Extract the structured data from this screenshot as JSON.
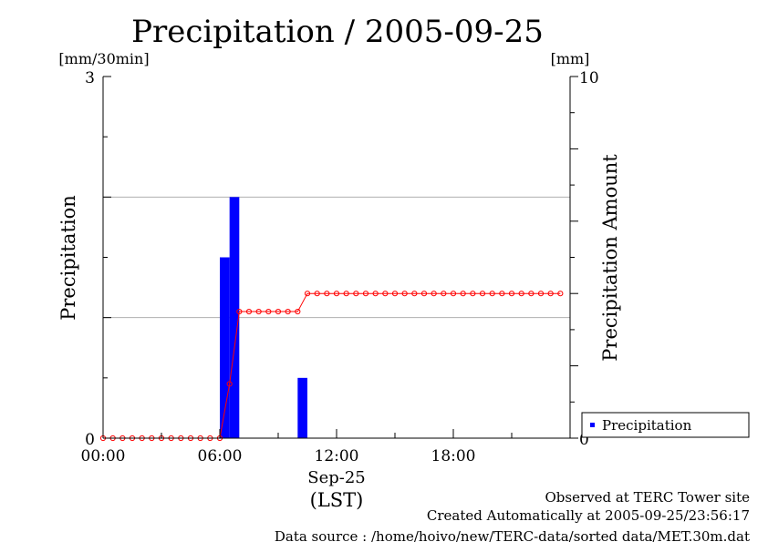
{
  "chart_data": {
    "type": "bar",
    "title": "Precipitation / 2005-09-25",
    "ylabel_left": "Precipitation",
    "ylabel_right": "Precipitation Amount",
    "unit_left": "[mm/30min]",
    "unit_right": "[mm]",
    "xlabel_date": "Sep-25",
    "xlabel_tz": "(LST)",
    "x_range_hours": [
      0,
      24
    ],
    "x_ticks": [
      {
        "hour": 0,
        "label": "00:00"
      },
      {
        "hour": 6,
        "label": "06:00"
      },
      {
        "hour": 12,
        "label": "12:00"
      },
      {
        "hour": 18,
        "label": "18:00"
      }
    ],
    "ylim_left": [
      0,
      3
    ],
    "ylim_right": [
      0,
      10
    ],
    "y_left_tick_labels": [
      {
        "value": 0,
        "label": "0"
      },
      {
        "value": 3,
        "label": "3"
      }
    ],
    "y_right_tick_labels": [
      {
        "value": 0,
        "label": "0"
      },
      {
        "value": 10,
        "label": "10"
      }
    ],
    "gridlines_left": [
      1,
      2
    ],
    "legend": {
      "placement": "bottom-right",
      "label": "Precipitation"
    },
    "colors": {
      "bars": "#0000ff",
      "cumulative": "#ff0000",
      "grid": "#b0b0b0"
    },
    "bars": [
      {
        "start_hour": 6.0,
        "value": 1.5
      },
      {
        "start_hour": 6.5,
        "value": 2.0
      },
      {
        "start_hour": 10.0,
        "value": 0.5
      }
    ],
    "cumulative_amount": {
      "interval_hours": 0.5,
      "values": [
        0,
        0,
        0,
        0,
        0,
        0,
        0,
        0,
        0,
        0,
        0,
        0,
        0,
        1.5,
        3.5,
        3.5,
        3.5,
        3.5,
        3.5,
        3.5,
        3.5,
        4.0,
        4.0,
        4.0,
        4.0,
        4.0,
        4.0,
        4.0,
        4.0,
        4.0,
        4.0,
        4.0,
        4.0,
        4.0,
        4.0,
        4.0,
        4.0,
        4.0,
        4.0,
        4.0,
        4.0,
        4.0,
        4.0,
        4.0,
        4.0,
        4.0,
        4.0,
        4.0
      ]
    }
  },
  "footer": {
    "line1": "Observed at TERC Tower site",
    "line2": "Created Automatically at 2005-09-25/23:56:17",
    "line3": "Data source : /home/hoivo/new/TERC-data/sorted  data/MET.30m.dat"
  }
}
